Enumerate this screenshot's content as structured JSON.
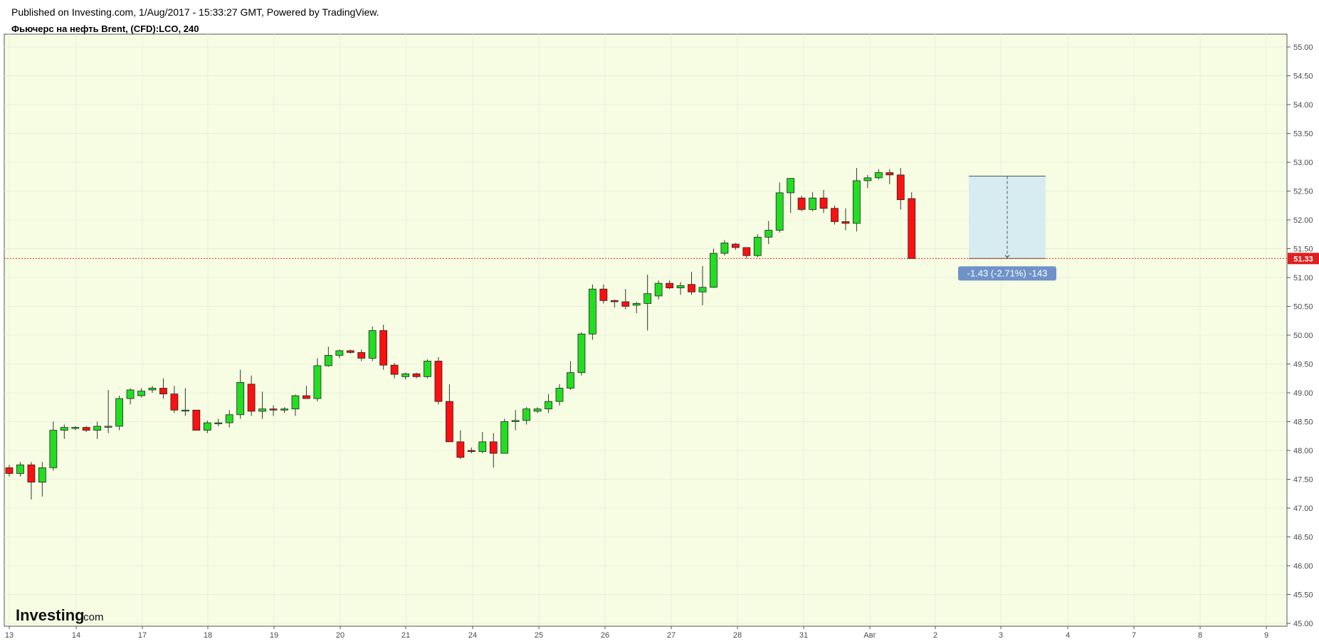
{
  "header": {
    "published": "Published on Investing.com, 1/Aug/2017 - 15:33:27 GMT, Powered by TradingView.",
    "title": "Фьючерс на нефть Brent, (CFD):LCO, 240"
  },
  "colors": {
    "plot_background": "#f6fde3",
    "up_candle": "#22dd22",
    "down_candle": "#ff1010",
    "grid": "#e9eedd",
    "price_line": "#e02020",
    "measure_fill": "#d6ecf0",
    "measure_label": "#6f93c8"
  },
  "chart_data": {
    "type": "candlestick",
    "timeframe": "240",
    "x_tick_labels": [
      "13",
      "14",
      "17",
      "18",
      "19",
      "20",
      "21",
      "24",
      "25",
      "26",
      "27",
      "28",
      "31",
      "Авг",
      "2",
      "3",
      "4",
      "7",
      "8",
      "9"
    ],
    "y_tick_labels": [
      "55.00",
      "54.50",
      "54.00",
      "53.50",
      "53.00",
      "52.50",
      "52.00",
      "51.50",
      "51.00",
      "50.50",
      "50.00",
      "49.50",
      "49.00",
      "48.50",
      "48.00",
      "47.50",
      "47.00",
      "46.50",
      "46.00",
      "45.50",
      "45.00"
    ],
    "ylim": [
      45.0,
      55.0
    ],
    "grid": true,
    "candles_ohlc": [
      [
        47.7,
        47.75,
        47.55,
        47.6
      ],
      [
        47.6,
        47.8,
        47.55,
        47.75
      ],
      [
        47.75,
        47.8,
        47.15,
        47.45
      ],
      [
        47.45,
        47.8,
        47.2,
        47.7
      ],
      [
        47.7,
        48.5,
        47.65,
        48.35
      ],
      [
        48.35,
        48.45,
        48.2,
        48.4
      ],
      [
        48.4,
        48.42,
        48.35,
        48.4
      ],
      [
        48.4,
        48.42,
        48.32,
        48.35
      ],
      [
        48.35,
        48.5,
        48.2,
        48.42
      ],
      [
        48.42,
        49.05,
        48.3,
        48.42
      ],
      [
        48.42,
        48.95,
        48.35,
        48.9
      ],
      [
        48.9,
        49.08,
        48.8,
        49.05
      ],
      [
        48.95,
        49.08,
        48.92,
        49.03
      ],
      [
        49.05,
        49.12,
        49.0,
        49.08
      ],
      [
        49.08,
        49.25,
        48.9,
        48.98
      ],
      [
        48.98,
        49.12,
        48.65,
        48.7
      ],
      [
        48.7,
        49.08,
        48.6,
        48.7
      ],
      [
        48.7,
        48.7,
        48.35,
        48.35
      ],
      [
        48.35,
        48.52,
        48.3,
        48.48
      ],
      [
        48.48,
        48.55,
        48.42,
        48.48
      ],
      [
        48.48,
        48.7,
        48.4,
        48.62
      ],
      [
        48.62,
        49.4,
        48.55,
        49.18
      ],
      [
        49.15,
        49.3,
        48.6,
        48.68
      ],
      [
        48.68,
        49.02,
        48.55,
        48.72
      ],
      [
        48.72,
        48.78,
        48.6,
        48.7
      ],
      [
        48.7,
        48.75,
        48.65,
        48.72
      ],
      [
        48.72,
        48.97,
        48.6,
        48.95
      ],
      [
        48.95,
        49.12,
        48.9,
        48.9
      ],
      [
        48.9,
        49.6,
        48.85,
        49.47
      ],
      [
        49.47,
        49.8,
        49.45,
        49.65
      ],
      [
        49.65,
        49.75,
        49.6,
        49.73
      ],
      [
        49.73,
        49.75,
        49.68,
        49.7
      ],
      [
        49.7,
        49.75,
        49.55,
        49.6
      ],
      [
        49.6,
        50.15,
        49.55,
        50.08
      ],
      [
        50.08,
        50.18,
        49.4,
        49.48
      ],
      [
        49.48,
        49.52,
        49.25,
        49.32
      ],
      [
        49.28,
        49.35,
        49.23,
        49.33
      ],
      [
        49.33,
        49.35,
        49.25,
        49.28
      ],
      [
        49.28,
        49.58,
        49.25,
        49.55
      ],
      [
        49.55,
        49.62,
        48.8,
        48.85
      ],
      [
        48.85,
        49.15,
        48.15,
        48.15
      ],
      [
        48.15,
        48.35,
        47.85,
        47.88
      ],
      [
        48.0,
        48.05,
        47.95,
        47.98
      ],
      [
        47.98,
        48.32,
        47.95,
        48.15
      ],
      [
        48.15,
        48.3,
        47.7,
        47.95
      ],
      [
        47.95,
        48.55,
        47.95,
        48.5
      ],
      [
        48.5,
        48.7,
        48.35,
        48.52
      ],
      [
        48.52,
        48.75,
        48.45,
        48.72
      ],
      [
        48.68,
        48.75,
        48.65,
        48.72
      ],
      [
        48.72,
        48.98,
        48.65,
        48.85
      ],
      [
        48.85,
        49.15,
        48.78,
        49.08
      ],
      [
        49.08,
        49.55,
        49.05,
        49.35
      ],
      [
        49.35,
        50.05,
        49.3,
        50.02
      ],
      [
        50.02,
        50.88,
        49.92,
        50.8
      ],
      [
        50.8,
        50.88,
        50.55,
        50.6
      ],
      [
        50.6,
        50.62,
        50.48,
        50.58
      ],
      [
        50.58,
        50.8,
        50.45,
        50.5
      ],
      [
        50.52,
        50.58,
        50.38,
        50.55
      ],
      [
        50.55,
        51.05,
        50.08,
        50.72
      ],
      [
        50.68,
        50.95,
        50.62,
        50.9
      ],
      [
        50.9,
        50.95,
        50.8,
        50.82
      ],
      [
        50.82,
        50.92,
        50.7,
        50.86
      ],
      [
        50.88,
        51.1,
        50.7,
        50.75
      ],
      [
        50.75,
        51.2,
        50.52,
        50.83
      ],
      [
        50.83,
        51.5,
        50.82,
        51.42
      ],
      [
        51.42,
        51.65,
        51.38,
        51.6
      ],
      [
        51.58,
        51.6,
        51.48,
        51.52
      ],
      [
        51.52,
        51.52,
        51.33,
        51.38
      ],
      [
        51.38,
        51.75,
        51.35,
        51.7
      ],
      [
        51.7,
        51.98,
        51.58,
        51.82
      ],
      [
        51.82,
        52.65,
        51.78,
        52.47
      ],
      [
        52.47,
        52.72,
        52.12,
        52.72
      ],
      [
        52.38,
        52.42,
        52.15,
        52.18
      ],
      [
        52.18,
        52.48,
        52.15,
        52.38
      ],
      [
        52.38,
        52.52,
        52.12,
        52.2
      ],
      [
        52.2,
        52.25,
        51.92,
        51.97
      ],
      [
        51.97,
        52.2,
        51.82,
        51.94
      ],
      [
        51.94,
        52.9,
        51.8,
        52.68
      ],
      [
        52.68,
        52.78,
        52.55,
        52.73
      ],
      [
        52.73,
        52.88,
        52.7,
        52.82
      ],
      [
        52.82,
        52.88,
        52.62,
        52.78
      ],
      [
        52.78,
        52.9,
        52.18,
        52.35
      ],
      [
        52.37,
        52.48,
        51.33,
        51.33
      ]
    ],
    "last_price_label": "51.33",
    "measure": {
      "from_price": 52.76,
      "to_price": 51.33,
      "label": "-1.43 (-2.71%) -143"
    },
    "watermark": {
      "brand": "Investing",
      "suffix": ".com"
    }
  }
}
